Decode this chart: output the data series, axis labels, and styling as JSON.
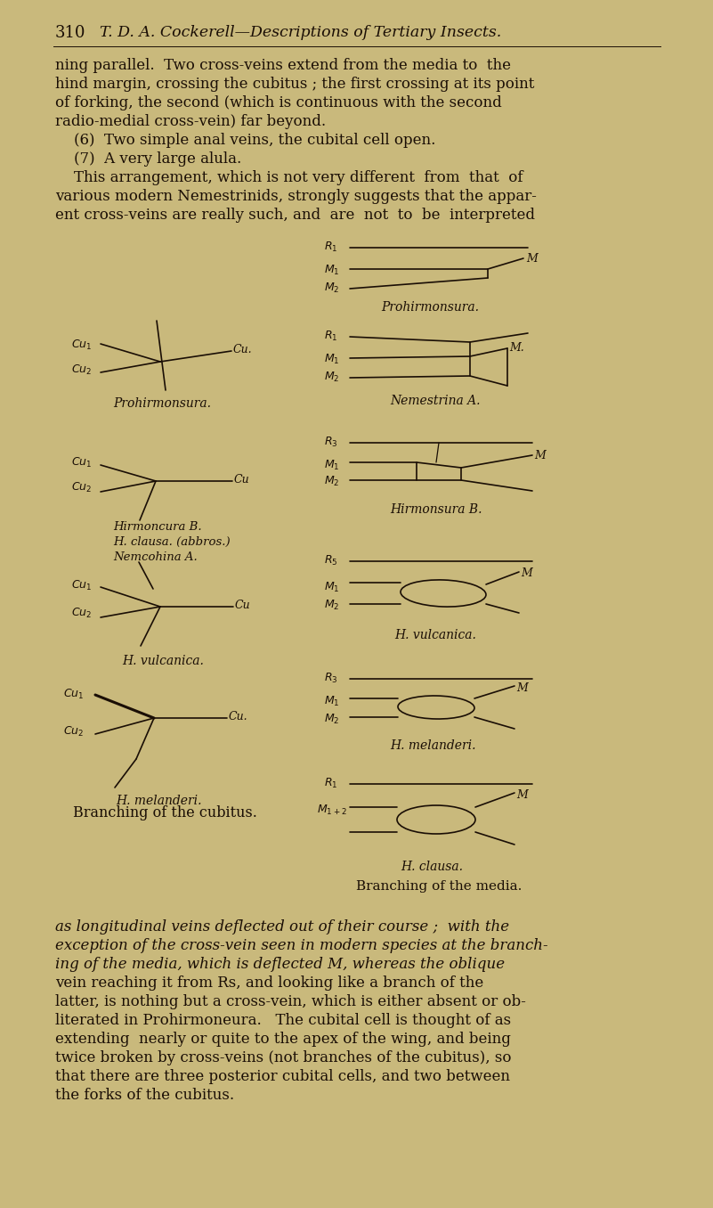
{
  "bg_color": "#c9b97c",
  "text_color": "#1a0e05",
  "page_number": "310",
  "header_italic": "T. D. A. Cockerell—Descriptions of Tertiary Insects.",
  "body_lines_top": [
    "ning parallel.  Two cross-veins extend from the media to  the",
    "hind margin, crossing the cubitus ; the first crossing at its point",
    "of forking, the second (which is continuous with the second",
    "radio-medial cross-vein) far beyond.",
    "    (6)  Two simple anal veins, the cubital cell open.",
    "    (7)  A very large alula.",
    "    This arrangement, which is not very different  from  that  of",
    "various modern Nemestrinids, strongly suggests that the appar-",
    "ent cross-veins are really such, and  are  not  to  be  interpreted"
  ],
  "body_lines_bottom_italic": [
    "as longitudinal veins deflected out of their course ;  with the",
    "exception of the cross-vein seen in modern species at the branch-",
    "ing of the media, which is deflected M, whereas the oblique"
  ],
  "body_lines_bottom_normal": [
    "vein reaching it from Rs, and looking like a branch of the",
    "latter, is nothing but a cross-vein, which is either absent or ob-",
    "literated in Prohirmoneura.   The cubital cell is thought of as",
    "extending  nearly or quite to the apex of the wing, and being",
    "twice broken by cross-veins (not branches of the cubitus), so",
    "that there are three posterior cubital cells, and two between",
    "the forks of the cubitus."
  ],
  "left_label": "Branching of the cubitus.",
  "right_label": "Branching of the media.",
  "figsize": [
    8.01,
    13.56
  ],
  "dpi": 100
}
